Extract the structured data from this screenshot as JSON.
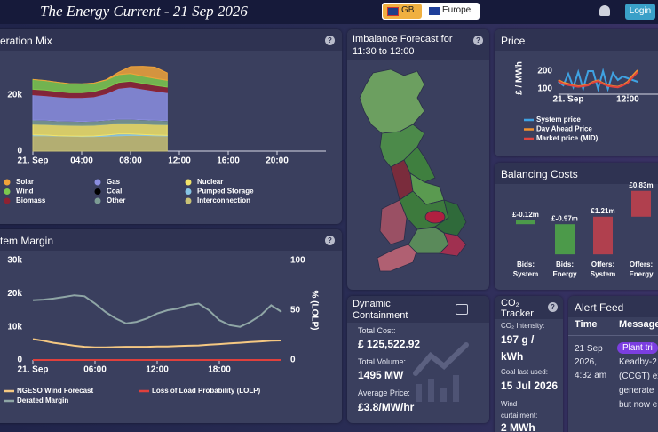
{
  "header": {
    "title": "The Energy Current - 21 Sep 2026",
    "regions": [
      "GB",
      "Europe"
    ],
    "login": "Login"
  },
  "chart_data": [
    {
      "type": "area",
      "title": "eration Mix",
      "x": [
        0,
        1,
        2,
        3,
        4,
        5,
        6,
        7,
        8,
        9,
        10,
        11
      ],
      "xlim": [
        0,
        24
      ],
      "xticks": [
        {
          "value": 0,
          "label": "21. Sep"
        },
        {
          "value": 4,
          "label": "04:00"
        },
        {
          "value": 8,
          "label": "08:00"
        },
        {
          "value": 12,
          "label": "12:00"
        },
        {
          "value": 16,
          "label": "16:00"
        },
        {
          "value": 20,
          "label": "20:00"
        }
      ],
      "ylim": [
        0,
        35000
      ],
      "yticks": [
        0,
        {
          "value": 20000,
          "label": "20k"
        }
      ],
      "series": [
        {
          "name": "Solar",
          "color": "#f0a33a",
          "values": [
            0,
            0,
            0,
            0,
            0,
            0,
            100,
            800,
            2500,
            3500,
            4000,
            2600
          ]
        },
        {
          "name": "Wind",
          "color": "#7cc84e",
          "values": [
            3500,
            3400,
            3300,
            3200,
            3100,
            3000,
            2900,
            2800,
            2700,
            2600,
            2500,
            2400
          ]
        },
        {
          "name": "Biomass",
          "color": "#8e2232",
          "values": [
            2000,
            2000,
            1900,
            1800,
            1800,
            1900,
            2000,
            2100,
            2100,
            2000,
            2000,
            2000
          ]
        },
        {
          "name": "Gas",
          "color": "#8b8ee0",
          "values": [
            9000,
            8800,
            8600,
            8400,
            8500,
            8700,
            9500,
            11000,
            11500,
            11000,
            10500,
            10000
          ]
        },
        {
          "name": "Coal",
          "color": "#000000",
          "values": [
            0,
            0,
            0,
            0,
            0,
            0,
            0,
            0,
            0,
            0,
            0,
            0
          ]
        },
        {
          "name": "Other",
          "color": "#7c9c94",
          "values": [
            1500,
            1500,
            1500,
            1500,
            1500,
            1500,
            1500,
            1500,
            1500,
            1500,
            1500,
            1500
          ]
        },
        {
          "name": "Nuclear",
          "color": "#f2e46a",
          "values": [
            3800,
            3800,
            3800,
            3800,
            3800,
            3800,
            3800,
            3800,
            3800,
            3800,
            3800,
            3800
          ]
        },
        {
          "name": "Pumped Storage",
          "color": "#86c4e4",
          "values": [
            300,
            200,
            100,
            100,
            100,
            200,
            400,
            600,
            500,
            300,
            200,
            200
          ]
        },
        {
          "name": "Interconnection",
          "color": "#c9c276",
          "values": [
            5500,
            5500,
            5400,
            5300,
            5200,
            5200,
            5300,
            5500,
            5600,
            5600,
            5500,
            5400
          ]
        }
      ]
    },
    {
      "type": "line",
      "title": "tem Margin",
      "x": [
        0,
        1,
        2,
        3,
        4,
        5,
        6,
        7,
        8,
        9,
        10,
        11,
        12,
        13,
        14,
        15,
        16,
        17,
        18,
        19,
        20,
        21,
        22,
        23,
        24
      ],
      "xlim": [
        0,
        24
      ],
      "xticks": [
        {
          "value": 0,
          "label": "21. Sep"
        },
        {
          "value": 6,
          "label": "06:00"
        },
        {
          "value": 12,
          "label": "12:00"
        },
        {
          "value": 18,
          "label": "18:00"
        }
      ],
      "ylim": [
        0,
        30000
      ],
      "yticks": [
        0,
        {
          "value": 10000,
          "label": "10k"
        },
        {
          "value": 20000,
          "label": "20k"
        },
        {
          "value": 30000,
          "label": "30k"
        }
      ],
      "y2lim": [
        0,
        100
      ],
      "y2ticks": [
        0,
        50,
        100
      ],
      "y2label": "% (LOLP)",
      "series": [
        {
          "name": "NGESO Wind Forecast",
          "color": "#f5c882",
          "values": [
            6300,
            5800,
            5200,
            4800,
            4300,
            4000,
            3800,
            3800,
            3900,
            4000,
            4000,
            4000,
            4100,
            4100,
            4200,
            4300,
            4400,
            4600,
            4800,
            5000,
            5200,
            5400,
            5600,
            5800,
            5900
          ]
        },
        {
          "name": "Loss of Load Probability (LOLP)",
          "color": "#e0403c",
          "axis": "y2",
          "values": [
            0,
            0,
            0,
            0,
            0,
            0,
            0,
            0,
            0,
            0,
            0,
            0,
            0,
            0,
            0,
            0,
            0,
            0,
            0,
            0,
            0,
            0,
            0,
            0,
            0
          ]
        },
        {
          "name": "Derated Margin",
          "color": "#8fa6a6",
          "values": [
            18000,
            18200,
            18500,
            19000,
            19500,
            19200,
            17000,
            14500,
            12500,
            11000,
            11500,
            12500,
            14000,
            15000,
            15500,
            16500,
            17000,
            15000,
            12000,
            10500,
            10000,
            11500,
            13500,
            16500,
            14500
          ]
        }
      ]
    },
    {
      "type": "line",
      "title": "Price",
      "ylabel": "£ / MWh",
      "x": [
        -2,
        -1,
        0,
        1,
        2,
        3,
        4,
        5,
        6,
        7,
        8,
        9,
        10,
        11,
        12,
        13,
        14
      ],
      "xlim": [
        -2,
        20
      ],
      "xticks": [
        {
          "value": 0,
          "label": "21. Sep"
        },
        {
          "value": 12,
          "label": "12:00"
        }
      ],
      "ylim": [
        70,
        250
      ],
      "yticks": [
        100,
        200
      ],
      "series": [
        {
          "name": "System price",
          "color": "#3fa2e2",
          "values": [
            140,
            120,
            185,
            110,
            195,
            100,
            200,
            200,
            100,
            200,
            100,
            190,
            150,
            170,
            160,
            150,
            140
          ]
        },
        {
          "name": "Day Ahead Price",
          "color": "#f2922e",
          "values": [
            150,
            135,
            128,
            120,
            115,
            118,
            125,
            140,
            148,
            132,
            120,
            115,
            112,
            122,
            140,
            175,
            205
          ]
        },
        {
          "name": "Market price (MID)",
          "color": "#e0443e",
          "values": [
            145,
            128,
            122,
            117,
            112,
            115,
            120,
            136,
            144,
            128,
            117,
            112,
            109,
            119,
            134,
            165,
            195
          ]
        }
      ]
    },
    {
      "type": "waterfall",
      "title": "Balancing Costs",
      "categories": [
        "Bids: System",
        "Bids: Energy",
        "Offers: System",
        "Offers: Energy"
      ],
      "values": [
        -0.12,
        -0.97,
        1.21,
        0.83
      ],
      "value_labels": [
        "£-0.12m",
        "£-0.97m",
        "£1.21m",
        "£0.83m"
      ],
      "colors": [
        "#4c9a4a",
        "#4c9a4a",
        "#b0404e",
        "#b0404e"
      ]
    }
  ],
  "imbalance": {
    "title": "Imbalance Forecast for 11:30 to 12:00"
  },
  "dynamic_containment": {
    "title": "Dynamic Containment",
    "items": [
      {
        "label": "Total Cost:",
        "value": "£ 125,522.92"
      },
      {
        "label": "Total Volume:",
        "value": "1495 MW"
      },
      {
        "label": "Average Price:",
        "value": "£3.8/MW/hr"
      }
    ]
  },
  "co2_tracker": {
    "title": "CO₂ Tracker",
    "items": [
      {
        "label": "CO₂ Intensity:",
        "value": "197 g / kWh"
      },
      {
        "label": "Coal last used:",
        "value": "15 Jul 2026"
      },
      {
        "label": "Wind curtailment:",
        "value": "2 MWh"
      }
    ]
  },
  "alert_feed": {
    "title": "Alert Feed",
    "columns": [
      "Time",
      "Message"
    ],
    "rows": [
      {
        "time": "21 Sep 2026, 4:32 am",
        "tag": "Plant tri",
        "message": [
          "Keadby-2",
          "(CCGT) ex",
          "generate",
          "but now e"
        ]
      }
    ]
  }
}
